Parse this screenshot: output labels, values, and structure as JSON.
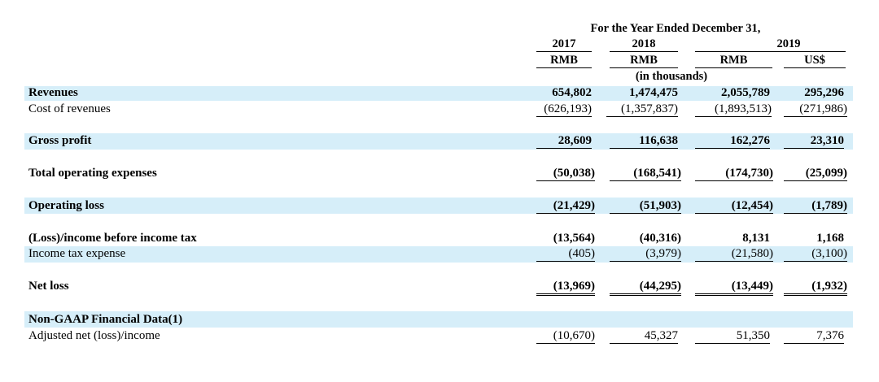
{
  "header": {
    "period_title": "For the Year Ended December 31,",
    "years": [
      "2017",
      "2018",
      "2019"
    ],
    "currencies": [
      "RMB",
      "RMB",
      "RMB",
      "US$"
    ],
    "units_note": "(in thousands)"
  },
  "rows": [
    {
      "label": "Revenues",
      "values": [
        "654,802",
        "1,474,475",
        "2,055,789",
        "295,296"
      ]
    },
    {
      "label": "Cost of revenues",
      "values": [
        "(626,193)",
        "(1,357,837)",
        "(1,893,513)",
        "(271,986)"
      ]
    },
    {
      "label": "Gross profit",
      "values": [
        "28,609",
        "116,638",
        "162,276",
        "23,310"
      ]
    },
    {
      "label": "Total operating expenses",
      "values": [
        "(50,038)",
        "(168,541)",
        "(174,730)",
        "(25,099)"
      ]
    },
    {
      "label": "Operating loss",
      "values": [
        "(21,429)",
        "(51,903)",
        "(12,454)",
        "(1,789)"
      ]
    },
    {
      "label": "(Loss)/income before income tax",
      "values": [
        "(13,564)",
        "(40,316)",
        "8,131",
        "1,168"
      ]
    },
    {
      "label": "Income tax expense",
      "values": [
        "(405)",
        "(3,979)",
        "(21,580)",
        "(3,100)"
      ]
    },
    {
      "label": "Net loss",
      "values": [
        "(13,969)",
        "(44,295)",
        "(13,449)",
        "(1,932)"
      ]
    },
    {
      "label": "Non-GAAP Financial Data(1)",
      "values": []
    },
    {
      "label": "Adjusted net (loss)/income",
      "values": [
        "(10,670)",
        "45,327",
        "51,350",
        "7,376"
      ]
    }
  ]
}
